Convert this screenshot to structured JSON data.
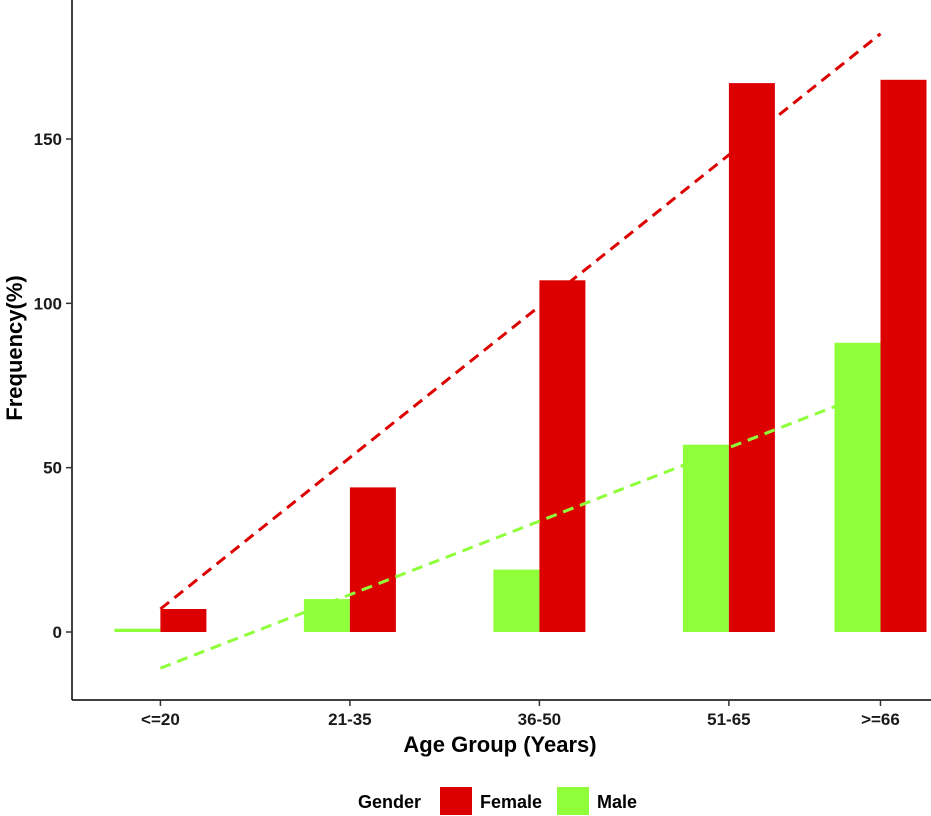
{
  "chart_data": {
    "type": "bar",
    "categories": [
      "<=20",
      "21-35",
      "36-50",
      "51-65",
      ">=66"
    ],
    "category_positions": [
      1,
      2.5,
      4,
      5.5,
      6.7
    ],
    "x_range": [
      0.3,
      7.1
    ],
    "series": [
      {
        "name": "Male",
        "color": "#8FFF3A",
        "values": [
          1,
          10,
          19,
          57,
          88
        ]
      },
      {
        "name": "Female",
        "color": "#DD0000",
        "values": [
          7,
          44,
          107,
          167,
          168
        ]
      }
    ],
    "trend_lines": [
      {
        "series": "Female",
        "color": "#DD0000",
        "x_start": 1,
        "y_start": 7,
        "x_end": 6.7,
        "y_end": 182
      },
      {
        "series": "Male",
        "color": "#8FFF3A",
        "x_start": 1,
        "y_start": -11,
        "x_end": 6.7,
        "y_end": 74
      }
    ],
    "xlabel": "Age Group (Years)",
    "ylabel": "Frequency(%)",
    "yticks": [
      0,
      50,
      100,
      150
    ],
    "ylim": [
      -20,
      190
    ],
    "legend": {
      "title": "Gender",
      "position": "bottom",
      "entries": [
        "Female",
        "Male"
      ]
    }
  }
}
